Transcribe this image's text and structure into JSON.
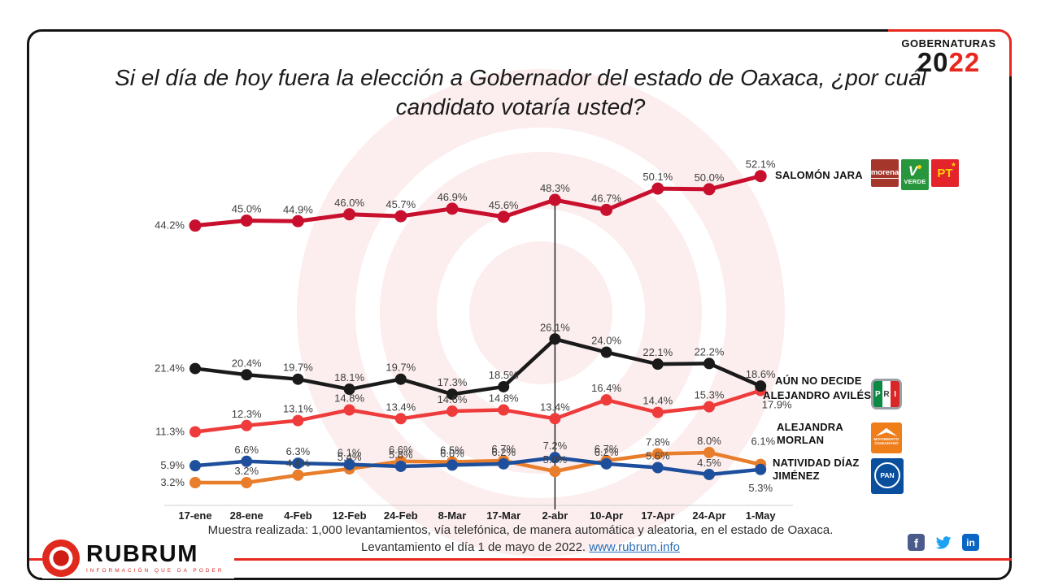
{
  "badge": {
    "label": "GOBERNATURAS",
    "year_black": "20",
    "year_red": "22"
  },
  "title": "Si el día de hoy fuera la elección a Gobernador del estado de Oaxaca, ¿por cuál candidato votaría usted?",
  "chart_data": {
    "type": "line",
    "categories": [
      "17-ene",
      "28-ene",
      "4-Feb",
      "12-Feb",
      "24-Feb",
      "8-Mar",
      "17-Mar",
      "2-abr",
      "10-Apr",
      "17-Apr",
      "24-Apr",
      "1-May"
    ],
    "series": [
      {
        "name": "SALOMÓN JARA",
        "color": "#c8102e",
        "parties": [
          "morena",
          "VERDE",
          "PT"
        ],
        "values": [
          44.2,
          45.0,
          44.9,
          46.0,
          45.7,
          46.9,
          45.6,
          48.3,
          46.7,
          50.1,
          50.0,
          52.1
        ]
      },
      {
        "name": "AÚN NO DECIDE",
        "color": "#1a1a1a",
        "parties": [],
        "values": [
          21.4,
          20.4,
          19.7,
          18.1,
          19.7,
          17.3,
          18.5,
          26.1,
          24.0,
          22.1,
          22.2,
          18.6
        ]
      },
      {
        "name": "ALEJANDRO AVILÉS",
        "color": "#ee3b3b",
        "parties": [
          "PRI"
        ],
        "values": [
          11.3,
          12.3,
          13.1,
          14.8,
          13.4,
          14.6,
          14.8,
          13.4,
          16.4,
          14.4,
          15.3,
          17.9
        ]
      },
      {
        "name": "ALEJANDRA MORLAN",
        "color": "#e87d2b",
        "parties": [
          "Movimiento Ciudadano"
        ],
        "values": [
          3.2,
          3.2,
          4.4,
          5.4,
          6.6,
          6.5,
          6.7,
          5.0,
          6.7,
          7.8,
          8.0,
          6.1
        ]
      },
      {
        "name": "NATIVIDAD DÍAZ JIMÉNEZ",
        "color": "#1e4f9c",
        "parties": [
          "PAN"
        ],
        "values": [
          5.9,
          6.6,
          6.3,
          6.1,
          5.8,
          6.0,
          6.2,
          7.2,
          6.2,
          5.6,
          4.5,
          5.3
        ]
      }
    ],
    "marker_category": "2-abr",
    "value_suffix": "%",
    "ylim": [
      0,
      60
    ],
    "grid": false,
    "legend_position": "right-inline"
  },
  "party_logos": {
    "morena": {
      "label": "morena"
    },
    "verde": {
      "mark": "V",
      "label": "VERDE"
    },
    "pt": {
      "label": "PT"
    },
    "pri": {
      "letters": [
        "P",
        "R",
        "I"
      ]
    },
    "mc": {
      "label_line1": "MOVIMIENTO",
      "label_line2": "CIUDADANO"
    },
    "pan": {
      "label": "PAN"
    }
  },
  "footer": {
    "line1": "Muestra realizada: 1,000 levantamientos, vía telefónica, de manera automática y aleatoria, en el estado de Oaxaca.",
    "line2_prefix": "Levantamiento el día 1 de mayo de 2022. ",
    "link": "www.rubrum.info"
  },
  "logo": {
    "name": "RUBRUM",
    "tagline": "INFORMACIÓN QUE DA PODER"
  },
  "social": {
    "facebook_glyph": "f",
    "linkedin_glyph": "in"
  }
}
